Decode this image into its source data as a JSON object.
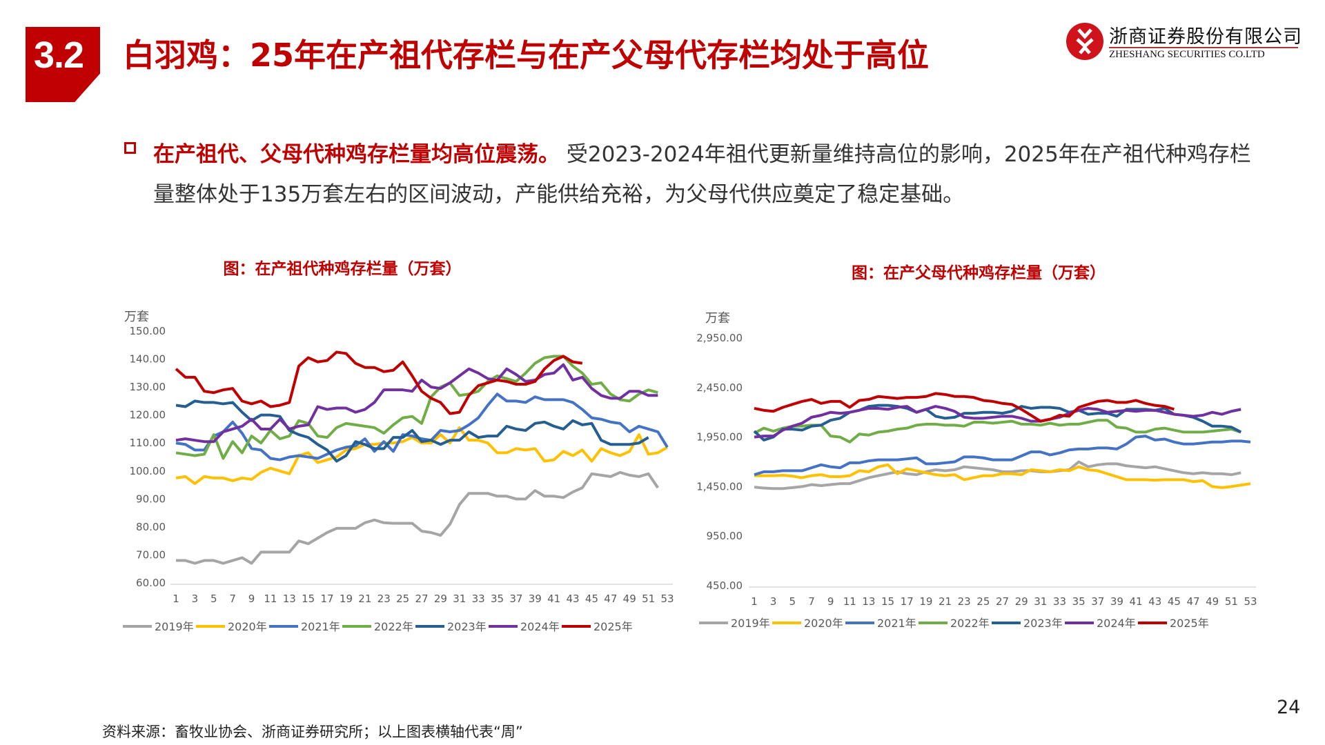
{
  "header": {
    "section": "3.2",
    "title": "白羽鸡：25年在产祖代存栏与在产父母代存栏均处于高位"
  },
  "logo": {
    "cn": "浙商证券股份有限公司",
    "en": "ZHESHANG SECURITIES CO.LTD",
    "color": "#d0121b"
  },
  "body": {
    "highlight": "在产祖代、父母代种鸡存栏量均高位震荡。",
    "text": "受2023-2024年祖代更新量维持高位的影响，2025年在产祖代种鸡存栏量整体处于135万套左右的区间波动，产能供给充裕，为父母代供应奠定了稳定基础。"
  },
  "footer": {
    "source": "资料来源：畜牧业协会、浙商证券研究所；以上图表横轴代表“周”",
    "page": "24"
  },
  "colors": {
    "2019年": "#a5a5a5",
    "2020年": "#ffc000",
    "2021年": "#4472c4",
    "2022年": "#70ad47",
    "2023年": "#255e91",
    "2024年": "#7030a0",
    "2025年": "#c00000"
  },
  "chart_data": [
    {
      "type": "line",
      "title": "图：在产祖代种鸡存栏量（万套）",
      "ylabel": "万套",
      "ylim": [
        60,
        150
      ],
      "yticks": [
        "60.00",
        "70.00",
        "80.00",
        "90.00",
        "100.00",
        "110.00",
        "120.00",
        "130.00",
        "140.00",
        "150.00"
      ],
      "xticks": [
        "1",
        "3",
        "5",
        "7",
        "9",
        "11",
        "13",
        "15",
        "17",
        "19",
        "21",
        "23",
        "25",
        "27",
        "29",
        "31",
        "33",
        "35",
        "37",
        "39",
        "41",
        "43",
        "45",
        "47",
        "49",
        "51",
        "53"
      ],
      "legend": "bottom",
      "grid": false,
      "series": [
        {
          "name": "2019年",
          "values": [
            68,
            68,
            67,
            68,
            68,
            67,
            68,
            69,
            67,
            71,
            71,
            71,
            71,
            75,
            74,
            76,
            78,
            79.5,
            79.5,
            79.5,
            81.5,
            82.5,
            81.5,
            81.3,
            81.3,
            81.3,
            78.5,
            78,
            77,
            81,
            88,
            92,
            92,
            92,
            91,
            91,
            90,
            90,
            93,
            91,
            91,
            90.5,
            92.5,
            94,
            99,
            98.5,
            98,
            99.5,
            98.5,
            98,
            99,
            94
          ]
        },
        {
          "name": "2020年",
          "values": [
            97.5,
            98,
            95.5,
            98,
            97.5,
            97.5,
            96.5,
            97.5,
            97,
            99.5,
            101,
            100,
            99,
            105.5,
            106.5,
            103,
            104,
            105,
            107.5,
            108,
            109.5,
            109.5,
            110,
            110,
            110.5,
            112,
            110,
            110,
            113,
            110,
            115.5,
            111,
            111,
            110,
            106.5,
            106.5,
            108,
            107.5,
            108,
            103.5,
            104,
            107,
            105.5,
            107.5,
            103.5,
            108,
            106.5,
            105.5,
            107,
            113,
            106,
            106.5,
            108.5
          ]
        },
        {
          "name": "2021年",
          "values": [
            110,
            109.5,
            107.5,
            107.5,
            112.5,
            114,
            117.5,
            113.5,
            108,
            107.5,
            104.5,
            104,
            105,
            105.5,
            105,
            104.5,
            106,
            107.5,
            108.5,
            109,
            111.5,
            107,
            110.5,
            107,
            113,
            112.5,
            111.5,
            111,
            114.5,
            114,
            114.5,
            116.5,
            119,
            123.5,
            127.5,
            125,
            125,
            124.5,
            126.5,
            125.5,
            125.5,
            125.5,
            124.5,
            122,
            119,
            118.5,
            117.5,
            117,
            114,
            116,
            115,
            114,
            108.5
          ]
        },
        {
          "name": "2022年",
          "values": [
            106.5,
            106,
            105.5,
            106,
            113,
            104.5,
            110.5,
            106.5,
            112.5,
            110,
            114.5,
            111.5,
            112.5,
            118,
            117,
            112.5,
            112,
            115.5,
            117,
            116.5,
            116,
            115.5,
            113.5,
            116.5,
            119,
            119.5,
            117,
            126.5,
            130,
            131.5,
            127,
            127.5,
            128.5,
            132,
            134,
            133,
            132,
            135,
            138.5,
            140.5,
            141,
            141,
            137.5,
            135,
            131,
            131.5,
            127.5,
            125.5,
            125,
            127.5,
            129,
            128
          ]
        },
        {
          "name": "2023年",
          "values": [
            123.5,
            123,
            125,
            124.5,
            124.5,
            124,
            124.5,
            121,
            118,
            120,
            120,
            119.5,
            114.5,
            113,
            112,
            109.5,
            107.5,
            103.5,
            105.5,
            110.5,
            109.5,
            108,
            108,
            112,
            112,
            114.5,
            110.5,
            111,
            109.5,
            111,
            111,
            114,
            112,
            112.5,
            112.5,
            116,
            115,
            114.5,
            117,
            117.5,
            116,
            115,
            118,
            116.5,
            117,
            111,
            109.5,
            109.5,
            109.5,
            110,
            112
          ]
        },
        {
          "name": "2024年",
          "values": [
            111,
            111.5,
            111,
            110.5,
            110.5,
            114,
            115,
            116,
            118.5,
            115,
            115,
            118.5,
            115,
            116,
            116.5,
            123,
            122,
            122.5,
            122.5,
            121,
            122,
            124.5,
            129,
            129,
            129,
            128.5,
            132.5,
            130,
            129.5,
            131.5,
            134,
            136.5,
            135,
            133,
            132.5,
            136.5,
            134.5,
            132,
            132.5,
            134.5,
            135,
            138,
            132.5,
            133.5,
            129.5,
            127,
            126,
            126,
            128.5,
            128.5,
            127,
            127
          ]
        },
        {
          "name": "2025年",
          "values": [
            136.5,
            133.5,
            133.5,
            128.5,
            128,
            129,
            129.5,
            125,
            124,
            125,
            123,
            123.5,
            124.5,
            137.5,
            140.5,
            139,
            139.5,
            142.5,
            142,
            138.5,
            137,
            137,
            135.5,
            136,
            139,
            134,
            128.5,
            126,
            124.5,
            120.5,
            121,
            127,
            130.5,
            131.5,
            132.5,
            132,
            131,
            131,
            132,
            136.5,
            139.5,
            141,
            139,
            138.5
          ]
        }
      ]
    },
    {
      "type": "line",
      "title": "图：在产父母代种鸡存栏量（万套）",
      "ylabel": "万套",
      "ylim": [
        450,
        2950
      ],
      "yticks": [
        "450.00",
        "950.00",
        "1,450.00",
        "1,950.00",
        "2,450.00",
        "2,950.00"
      ],
      "xticks": [
        "1",
        "3",
        "5",
        "7",
        "9",
        "11",
        "13",
        "15",
        "17",
        "19",
        "21",
        "23",
        "25",
        "27",
        "29",
        "31",
        "33",
        "35",
        "37",
        "39",
        "41",
        "43",
        "45",
        "47",
        "49",
        "51",
        "53"
      ],
      "legend": "bottom",
      "grid": false,
      "series": [
        {
          "name": "2019年",
          "values": [
            1445,
            1435,
            1430,
            1430,
            1440,
            1450,
            1470,
            1460,
            1470,
            1480,
            1480,
            1510,
            1540,
            1560,
            1580,
            1600,
            1580,
            1570,
            1600,
            1620,
            1610,
            1620,
            1650,
            1640,
            1630,
            1620,
            1600,
            1600,
            1610,
            1610,
            1600,
            1600,
            1610,
            1620,
            1700,
            1650,
            1670,
            1680,
            1680,
            1660,
            1650,
            1640,
            1650,
            1630,
            1610,
            1590,
            1580,
            1590,
            1580,
            1580,
            1570,
            1590
          ]
        },
        {
          "name": "2020年",
          "values": [
            1560,
            1560,
            1560,
            1565,
            1555,
            1540,
            1560,
            1570,
            1550,
            1550,
            1560,
            1610,
            1600,
            1650,
            1670,
            1580,
            1630,
            1610,
            1590,
            1570,
            1560,
            1570,
            1520,
            1540,
            1560,
            1560,
            1580,
            1580,
            1570,
            1620,
            1610,
            1600,
            1620,
            1610,
            1650,
            1620,
            1610,
            1580,
            1550,
            1520,
            1520,
            1520,
            1515,
            1520,
            1520,
            1520,
            1500,
            1510,
            1450,
            1440,
            1450,
            1465,
            1480
          ]
        },
        {
          "name": "2021年",
          "values": [
            1570,
            1600,
            1600,
            1610,
            1610,
            1610,
            1640,
            1670,
            1650,
            1640,
            1690,
            1690,
            1710,
            1720,
            1720,
            1720,
            1730,
            1740,
            1680,
            1680,
            1690,
            1700,
            1750,
            1750,
            1740,
            1720,
            1720,
            1720,
            1760,
            1800,
            1800,
            1770,
            1790,
            1820,
            1830,
            1830,
            1840,
            1840,
            1830,
            1880,
            1950,
            1960,
            1920,
            1930,
            1900,
            1880,
            1880,
            1890,
            1900,
            1900,
            1910,
            1910,
            1900
          ]
        },
        {
          "name": "2022年",
          "values": [
            1990,
            2040,
            2010,
            2040,
            2060,
            2060,
            2070,
            2070,
            1960,
            1950,
            1900,
            1980,
            1970,
            2000,
            2010,
            2030,
            2040,
            2070,
            2080,
            2080,
            2070,
            2070,
            2060,
            2100,
            2100,
            2090,
            2100,
            2110,
            2080,
            2080,
            2070,
            2090,
            2070,
            2080,
            2080,
            2100,
            2120,
            2120,
            2050,
            2040,
            2000,
            2000,
            2030,
            2040,
            2020,
            2000,
            2000,
            2000,
            2010,
            2020,
            2030,
            2000
          ]
        },
        {
          "name": "2023年",
          "values": [
            2010,
            1920,
            1950,
            2030,
            2030,
            2020,
            2060,
            2070,
            2120,
            2140,
            2200,
            2220,
            2260,
            2270,
            2270,
            2260,
            2240,
            2200,
            2230,
            2160,
            2140,
            2150,
            2190,
            2190,
            2200,
            2200,
            2190,
            2210,
            2260,
            2240,
            2250,
            2250,
            2240,
            2200,
            2220,
            2180,
            2190,
            2190,
            2160,
            2230,
            2230,
            2230,
            2220,
            2240,
            2180,
            2170,
            2150,
            2110,
            2060,
            2060,
            2050,
            2000
          ]
        },
        {
          "name": "2024年",
          "values": [
            1950,
            1960,
            1960,
            2020,
            2060,
            2090,
            2150,
            2170,
            2200,
            2190,
            2200,
            2220,
            2240,
            2240,
            2230,
            2250,
            2260,
            2200,
            2230,
            2260,
            2240,
            2210,
            2150,
            2140,
            2140,
            2150,
            2160,
            2160,
            2140,
            2110,
            2110,
            2130,
            2150,
            2190,
            2220,
            2240,
            2230,
            2200,
            2210,
            2220,
            2210,
            2220,
            2220,
            2200,
            2180,
            2170,
            2160,
            2170,
            2200,
            2180,
            2210,
            2230
          ]
        },
        {
          "name": "2025年",
          "values": [
            2240,
            2220,
            2210,
            2250,
            2280,
            2310,
            2330,
            2290,
            2310,
            2310,
            2250,
            2320,
            2330,
            2360,
            2350,
            2340,
            2350,
            2350,
            2360,
            2390,
            2380,
            2360,
            2360,
            2350,
            2320,
            2310,
            2290,
            2280,
            2230,
            2170,
            2110,
            2130,
            2170,
            2160,
            2250,
            2280,
            2310,
            2320,
            2300,
            2300,
            2320,
            2290,
            2270,
            2260,
            2230
          ]
        }
      ]
    }
  ]
}
